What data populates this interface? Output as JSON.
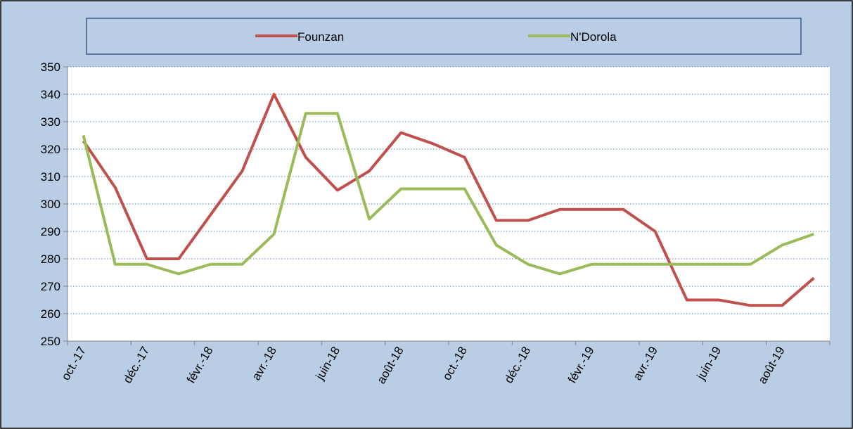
{
  "chart_data": {
    "type": "line",
    "categories": [
      "oct.-17",
      null,
      "déc.-17",
      null,
      "févr.-18",
      null,
      "avr.-18",
      null,
      "juin-18",
      null,
      "août-18",
      null,
      "oct.-18",
      null,
      "déc.-18",
      null,
      "févr.-19",
      null,
      "avr.-19",
      null,
      "juin-19",
      null,
      "août-19",
      null
    ],
    "series": [
      {
        "name": "Founzan",
        "color": "#c0504d",
        "values": [
          323,
          306,
          280,
          280,
          296,
          312,
          340,
          317,
          305,
          312,
          326,
          322,
          317,
          294,
          294,
          298,
          298,
          298,
          290,
          265,
          265,
          263,
          263,
          273
        ]
      },
      {
        "name": "N'Dorola",
        "color": "#9bbb59",
        "values": [
          325,
          278,
          278,
          274.5,
          278,
          278,
          289,
          333,
          333,
          294.5,
          305.5,
          305.5,
          305.5,
          285,
          278,
          274.5,
          278,
          278,
          278,
          278,
          278,
          278,
          285,
          289
        ]
      }
    ],
    "ylim": [
      250,
      350
    ],
    "yticks": [
      250,
      260,
      270,
      280,
      290,
      300,
      310,
      320,
      330,
      340,
      350
    ],
    "grid": true,
    "legend": "top"
  }
}
